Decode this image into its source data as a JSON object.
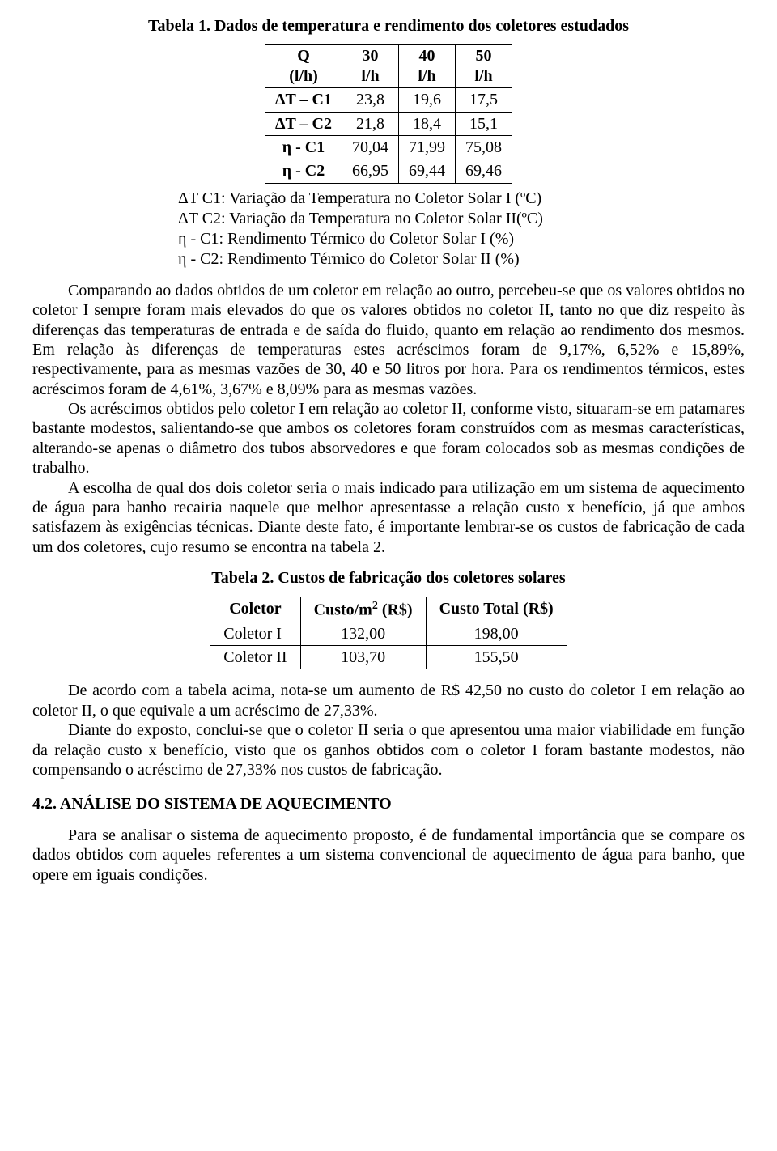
{
  "caption1": "Tabela 1. Dados de temperatura e rendimento dos coletores estudados",
  "table1": {
    "header_q": "Q\n(l/h)",
    "columns": [
      "30\nl/h",
      "40\nl/h",
      "50\nl/h"
    ],
    "rows": [
      {
        "label": "ΔT – C1",
        "cells": [
          "23,8",
          "19,6",
          "17,5"
        ]
      },
      {
        "label": "ΔT – C2",
        "cells": [
          "21,8",
          "18,4",
          "15,1"
        ]
      },
      {
        "label": "η - C1",
        "cells": [
          "70,04",
          "71,99",
          "75,08"
        ]
      },
      {
        "label": "η - C2",
        "cells": [
          "66,95",
          "69,44",
          "69,46"
        ]
      }
    ]
  },
  "legend": [
    "ΔT C1: Variação da Temperatura no Coletor Solar I (ºC)",
    "ΔT C2: Variação da Temperatura no Coletor Solar II(ºC)",
    "η - C1: Rendimento Térmico do Coletor Solar I (%)",
    "η - C2: Rendimento Térmico do Coletor Solar II (%)"
  ],
  "paras1": [
    "Comparando ao dados obtidos de um coletor em relação ao outro, percebeu-se que os valores  obtidos no coletor I sempre foram mais elevados do que os valores obtidos no coletor II, tanto no que diz respeito às diferenças das temperaturas de entrada e de saída do fluido, quanto em relação ao rendimento dos mesmos. Em relação às diferenças de temperaturas estes acréscimos foram de 9,17%, 6,52% e 15,89%, respectivamente, para as mesmas vazões de 30, 40 e 50 litros por hora. Para os rendimentos térmicos, estes acréscimos foram de 4,61%, 3,67% e 8,09% para as mesmas vazões.",
    "Os acréscimos obtidos pelo coletor I em relação ao coletor II, conforme visto, situaram-se em patamares bastante modestos, salientando-se que ambos os coletores foram construídos com as mesmas características, alterando-se apenas o diâmetro dos tubos absorvedores e que foram colocados sob as mesmas condições de trabalho.",
    "A escolha de qual dos dois coletor seria o mais indicado para utilização em um sistema de aquecimento de água para banho recairia naquele que melhor apresentasse a relação custo x benefício, já que ambos satisfazem às exigências técnicas. Diante deste fato, é importante lembrar-se os custos de fabricação de cada um dos coletores, cujo resumo se encontra na tabela 2."
  ],
  "caption2": "Tabela 2. Custos de fabricação dos coletores solares",
  "table2": {
    "columns": [
      "Coletor",
      "Custo/m",
      "Custo Total (R$)"
    ],
    "sup": "2",
    "unit_suffix": " (R$)",
    "rows": [
      {
        "label": "Coletor I",
        "c1": "132,00",
        "c2": "198,00"
      },
      {
        "label": "Coletor II",
        "c1": "103,70",
        "c2": "155,50"
      }
    ]
  },
  "paras2": [
    "De acordo com a tabela acima, nota-se um aumento de R$ 42,50 no custo do coletor I em relação ao coletor II, o que equivale a um acréscimo de 27,33%.",
    "Diante do exposto, conclui-se que o coletor II seria o que apresentou uma maior viabilidade em função da relação custo x benefício, visto que os ganhos obtidos com o coletor I foram bastante modestos, não compensando o acréscimo de 27,33% nos custos de fabricação."
  ],
  "section_heading": "4.2. ANÁLISE DO SISTEMA DE AQUECIMENTO",
  "paras3": [
    "Para se analisar o sistema de aquecimento proposto, é de fundamental importância que se compare os dados obtidos com aqueles referentes a um sistema convencional de aquecimento de água para banho, que opere em iguais condições."
  ],
  "style": {
    "font_family": "Times New Roman",
    "font_size_pt": 12,
    "text_color": "#000000",
    "background": "#ffffff",
    "border_color": "#000000"
  }
}
